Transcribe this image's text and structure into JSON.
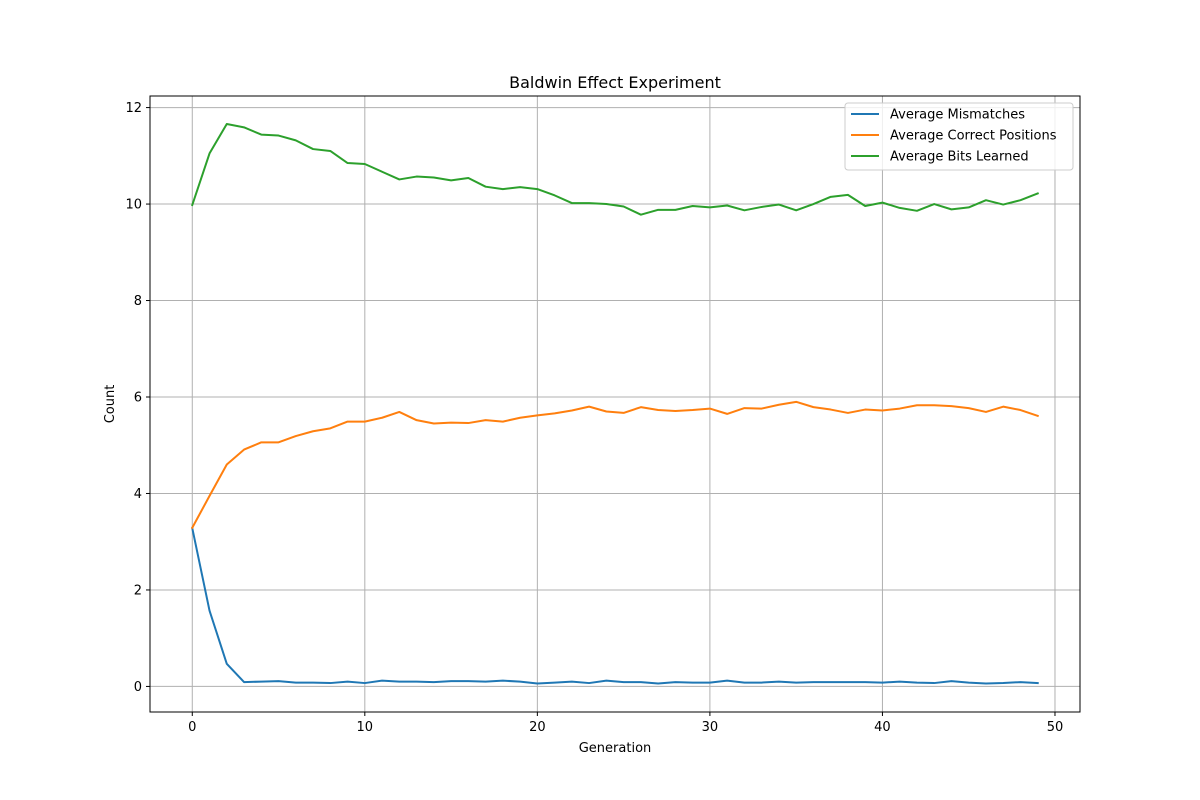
{
  "chart_data": {
    "type": "line",
    "title": "Baldwin Effect Experiment",
    "xlabel": "Generation",
    "ylabel": "Count",
    "xlim": [
      -2.45,
      51.45
    ],
    "ylim": [
      -0.53,
      12.24
    ],
    "x_ticks": [
      0,
      10,
      20,
      30,
      40,
      50
    ],
    "y_ticks": [
      0,
      2,
      4,
      6,
      8,
      10,
      12
    ],
    "grid": true,
    "legend_position": "upper right",
    "x": [
      0,
      1,
      2,
      3,
      4,
      5,
      6,
      7,
      8,
      9,
      10,
      11,
      12,
      13,
      14,
      15,
      16,
      17,
      18,
      19,
      20,
      21,
      22,
      23,
      24,
      25,
      26,
      27,
      28,
      29,
      30,
      31,
      32,
      33,
      34,
      35,
      36,
      37,
      38,
      39,
      40,
      41,
      42,
      43,
      44,
      45,
      46,
      47,
      48,
      49
    ],
    "series": [
      {
        "name": "Average Mismatches",
        "color": "#1f77b4",
        "values": [
          3.28,
          1.57,
          0.47,
          0.09,
          0.1,
          0.11,
          0.08,
          0.08,
          0.07,
          0.1,
          0.07,
          0.12,
          0.1,
          0.1,
          0.09,
          0.11,
          0.11,
          0.1,
          0.12,
          0.1,
          0.06,
          0.08,
          0.1,
          0.07,
          0.12,
          0.09,
          0.09,
          0.06,
          0.09,
          0.08,
          0.08,
          0.12,
          0.08,
          0.08,
          0.1,
          0.08,
          0.09,
          0.09,
          0.09,
          0.09,
          0.08,
          0.1,
          0.08,
          0.07,
          0.11,
          0.08,
          0.06,
          0.07,
          0.09,
          0.07
        ]
      },
      {
        "name": "Average Correct Positions",
        "color": "#ff7f0e",
        "values": [
          3.29,
          3.95,
          4.6,
          4.91,
          5.06,
          5.06,
          5.19,
          5.29,
          5.35,
          5.49,
          5.49,
          5.57,
          5.69,
          5.52,
          5.45,
          5.47,
          5.46,
          5.52,
          5.49,
          5.57,
          5.62,
          5.66,
          5.72,
          5.8,
          5.7,
          5.67,
          5.79,
          5.73,
          5.71,
          5.73,
          5.76,
          5.65,
          5.77,
          5.76,
          5.84,
          5.9,
          5.79,
          5.74,
          5.67,
          5.74,
          5.72,
          5.76,
          5.83,
          5.83,
          5.81,
          5.77,
          5.69,
          5.8,
          5.73,
          5.61
        ]
      },
      {
        "name": "Average Bits Learned",
        "color": "#2ca02c",
        "values": [
          9.98,
          11.05,
          11.66,
          11.59,
          11.44,
          11.42,
          11.32,
          11.14,
          11.1,
          10.85,
          10.83,
          10.67,
          10.51,
          10.57,
          10.55,
          10.49,
          10.54,
          10.36,
          10.31,
          10.35,
          10.31,
          10.18,
          10.02,
          10.02,
          10.0,
          9.95,
          9.78,
          9.88,
          9.88,
          9.96,
          9.93,
          9.97,
          9.87,
          9.94,
          9.99,
          9.87,
          10.0,
          10.15,
          10.19,
          9.96,
          10.03,
          9.92,
          9.86,
          10.0,
          9.89,
          9.93,
          10.08,
          9.99,
          10.08,
          10.22
        ]
      }
    ]
  }
}
